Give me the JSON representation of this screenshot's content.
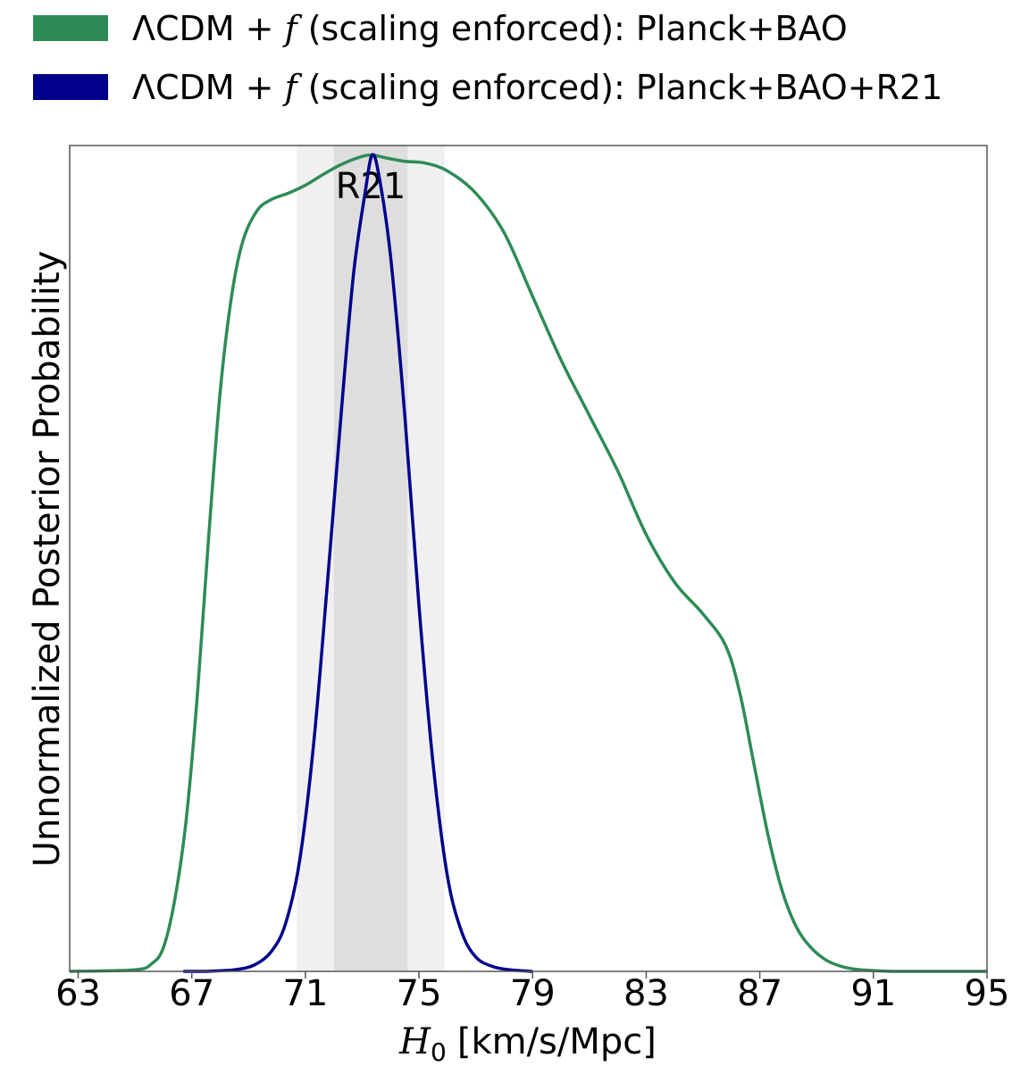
{
  "chart_data": {
    "type": "line",
    "xlabel_var": "H",
    "xlabel_sub": "0",
    "xlabel_unit": "[km/s/Mpc]",
    "ylabel": "Unnormalized Posterior Probability",
    "xlim": [
      62.7,
      95
    ],
    "ylim": [
      0,
      1.04
    ],
    "xticks": [
      63,
      67,
      71,
      75,
      79,
      83,
      87,
      91,
      95
    ],
    "grid": false,
    "legend_position": "top-left, outside above plot",
    "legend": [
      {
        "prefix": "ΛCDM + ",
        "var": "f",
        "suffix": " (scaling enforced): Planck+BAO",
        "color": "#2e8b57"
      },
      {
        "prefix": "ΛCDM + ",
        "var": "f",
        "suffix": " (scaling enforced): Planck+BAO+R21",
        "color": "#00008b"
      }
    ],
    "bands": [
      {
        "label": "",
        "x0": 70.7,
        "x1": 75.9,
        "color": "#f0f0f0"
      },
      {
        "label": "R21",
        "x0": 72.0,
        "x1": 74.6,
        "color": "#dedede"
      }
    ],
    "series": [
      {
        "color": "#2e8b57",
        "x": [
          62.7,
          65.0,
          65.6,
          66.0,
          66.4,
          66.8,
          67.2,
          67.6,
          68.0,
          68.4,
          68.8,
          69.3,
          69.8,
          70.4,
          71.0,
          71.6,
          72.2,
          72.8,
          73.3,
          73.9,
          74.5,
          75.2,
          76.0,
          77.0,
          78.0,
          79.0,
          80.0,
          81.0,
          82.0,
          83.0,
          84.0,
          85.0,
          85.8,
          86.3,
          86.8,
          87.3,
          87.8,
          88.3,
          88.8,
          89.3,
          89.8,
          90.3,
          91.0,
          92.0,
          95.0
        ],
        "y": [
          0.0,
          0.002,
          0.01,
          0.03,
          0.09,
          0.19,
          0.35,
          0.55,
          0.73,
          0.85,
          0.92,
          0.958,
          0.972,
          0.98,
          0.99,
          1.003,
          1.015,
          1.024,
          1.028,
          1.024,
          1.02,
          1.018,
          1.008,
          0.98,
          0.93,
          0.85,
          0.77,
          0.7,
          0.63,
          0.55,
          0.49,
          0.45,
          0.41,
          0.35,
          0.26,
          0.17,
          0.1,
          0.055,
          0.03,
          0.015,
          0.007,
          0.003,
          0.001,
          0.0,
          0.0
        ]
      },
      {
        "color": "#00008b",
        "x": [
          66.7,
          67.5,
          68.5,
          69.2,
          69.8,
          70.3,
          70.8,
          71.3,
          71.8,
          72.3,
          72.7,
          73.1,
          73.35,
          73.6,
          74.0,
          74.5,
          75.0,
          75.5,
          76.0,
          76.5,
          77.0,
          77.6,
          78.2,
          79.0
        ],
        "y": [
          0.0,
          0.0,
          0.002,
          0.008,
          0.025,
          0.06,
          0.14,
          0.29,
          0.5,
          0.72,
          0.88,
          0.98,
          1.028,
          1.0,
          0.9,
          0.7,
          0.46,
          0.26,
          0.12,
          0.05,
          0.018,
          0.006,
          0.002,
          0.0
        ]
      }
    ]
  }
}
